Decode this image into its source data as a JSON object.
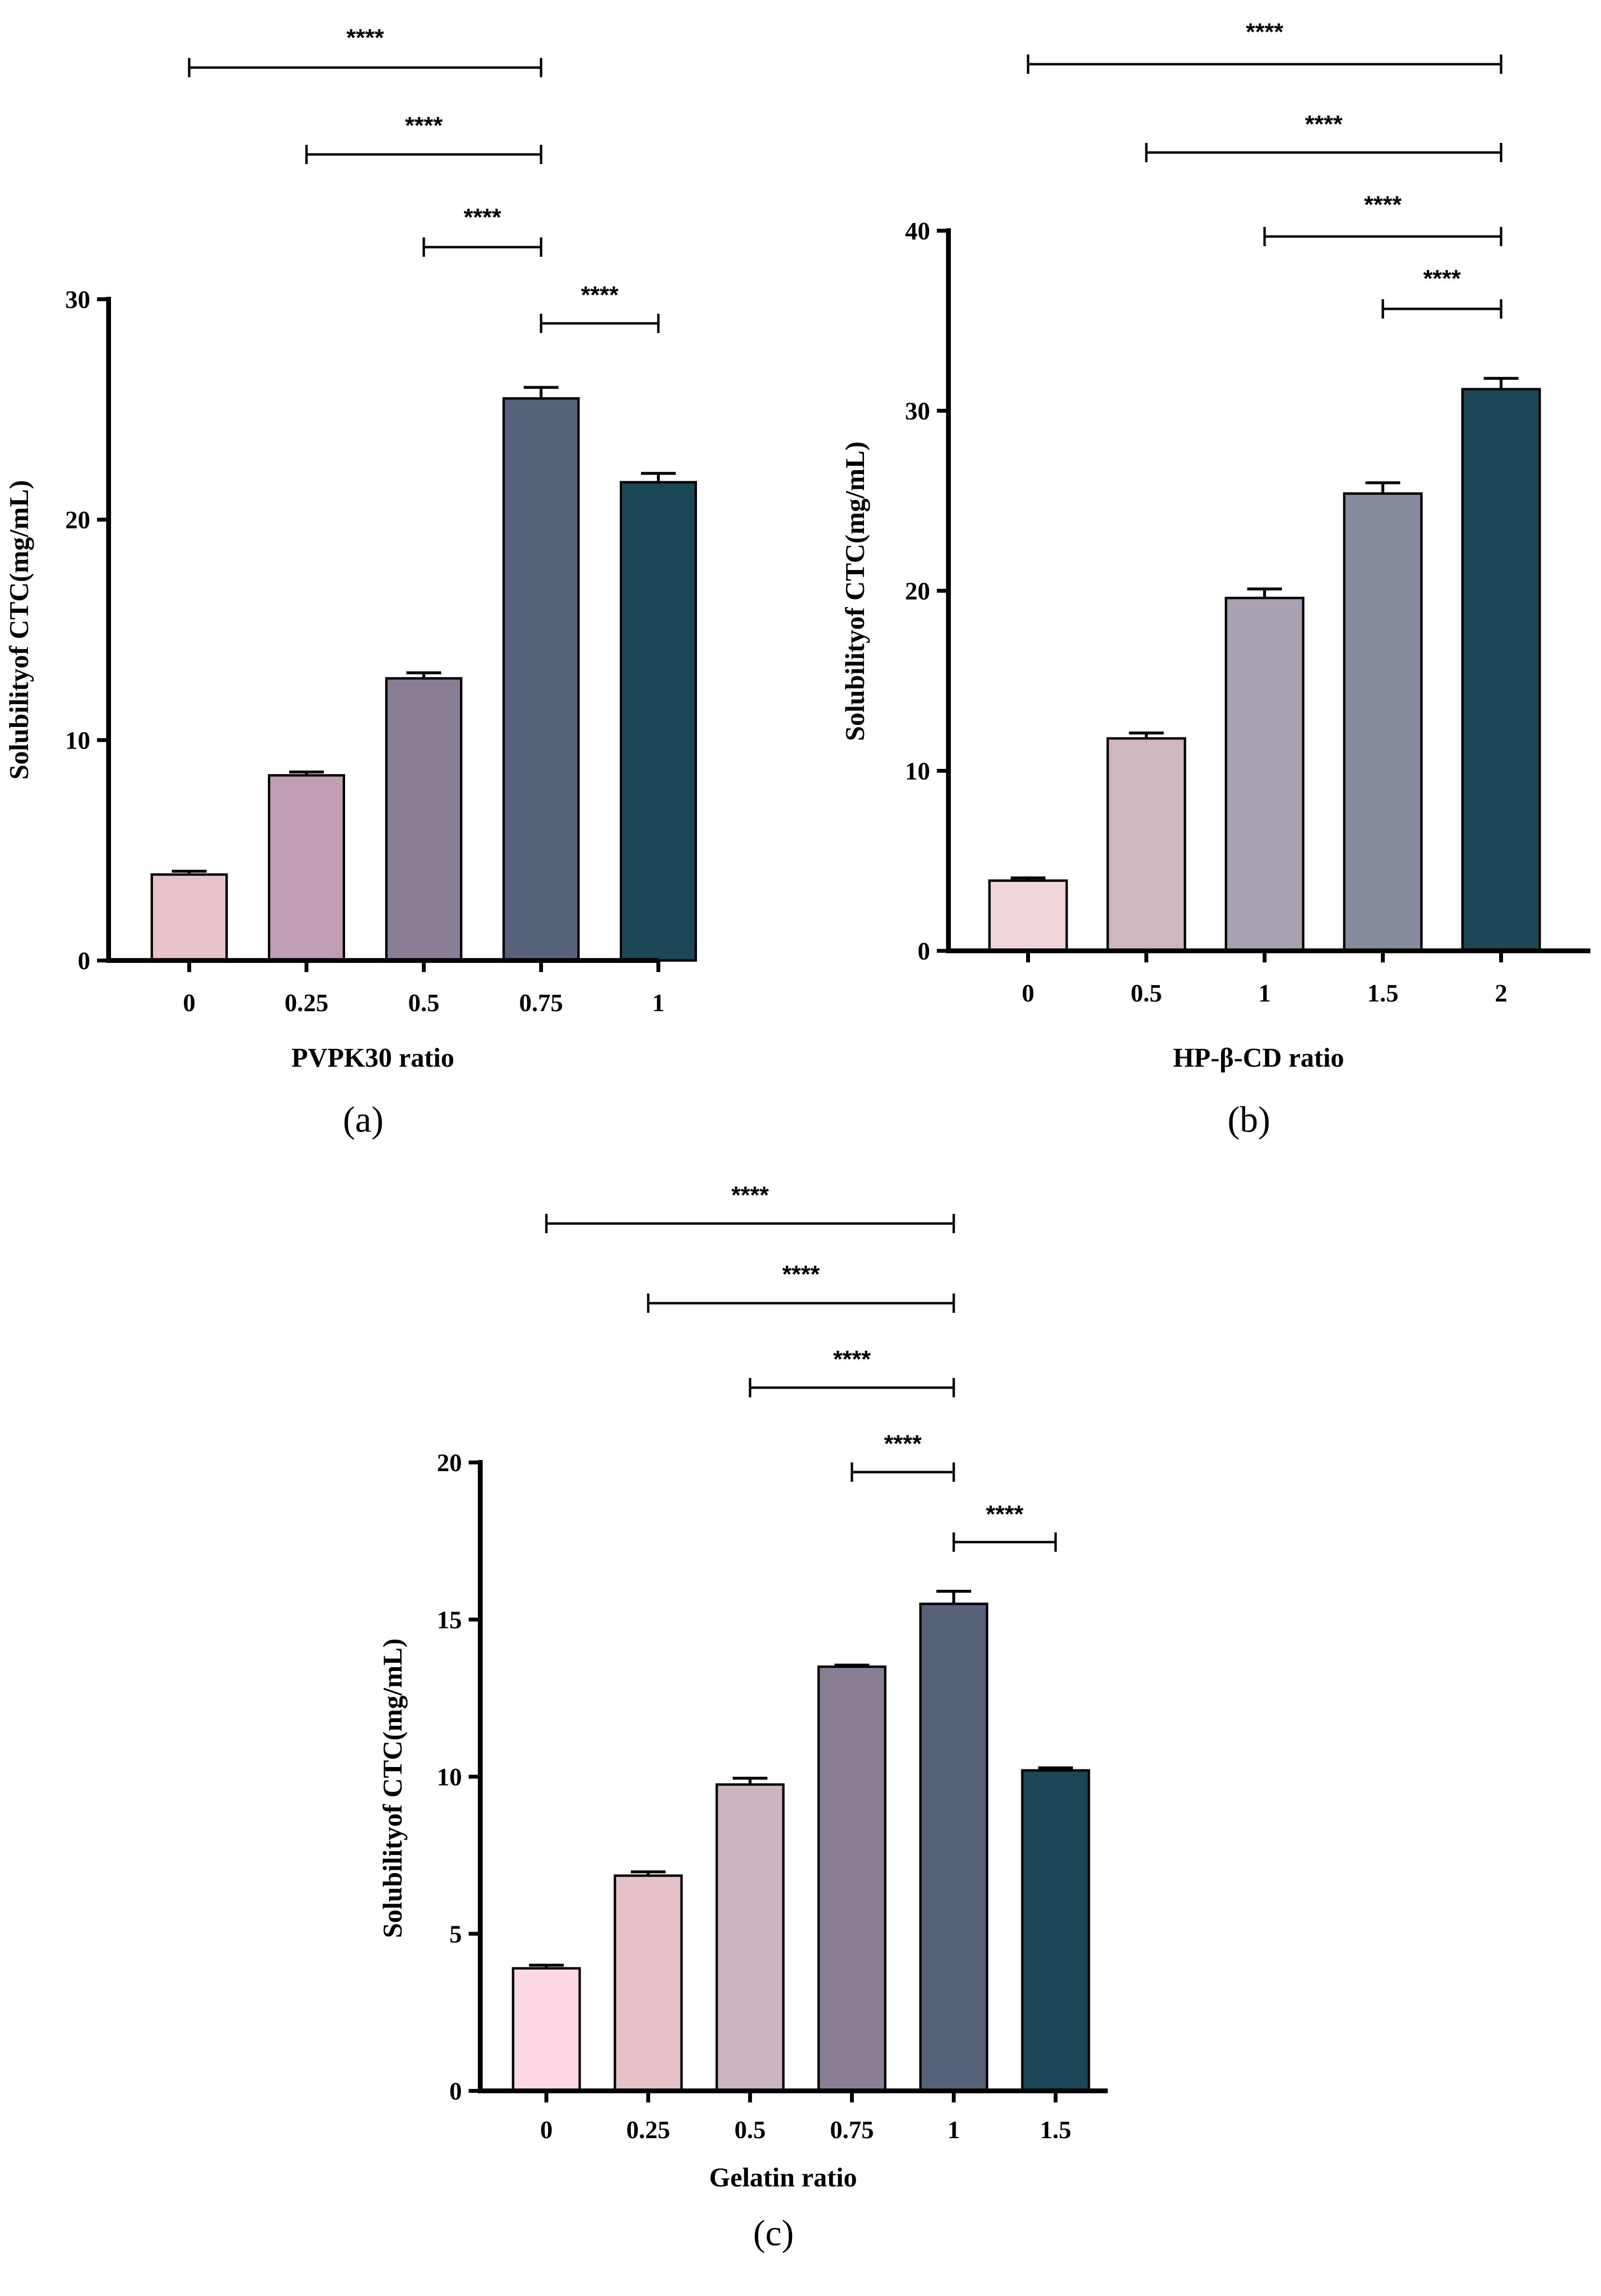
{
  "chart_data": [
    {
      "id": "a",
      "type": "bar",
      "panel_label": "(a)",
      "xlabel": "PVPK30 ratio",
      "ylabel": "Solubilityof CTC(mg/mL)",
      "ylim": [
        0,
        30
      ],
      "yticks": [
        0,
        10,
        20,
        30
      ],
      "categories": [
        "0",
        "0.25",
        "0.5",
        "0.75",
        "1"
      ],
      "values": [
        3.9,
        8.4,
        12.8,
        25.5,
        21.7
      ],
      "errors": [
        0.15,
        0.15,
        0.25,
        0.5,
        0.4
      ],
      "colors": [
        "#e6c3c8",
        "#c09fb2",
        "#897e95",
        "#566279",
        "#1b4655"
      ],
      "significance": [
        {
          "from": 0,
          "to": 3,
          "label": "****"
        },
        {
          "from": 1,
          "to": 3,
          "label": "****"
        },
        {
          "from": 2,
          "to": 3,
          "label": "****"
        },
        {
          "from": 3,
          "to": 4,
          "label": "****"
        }
      ]
    },
    {
      "id": "b",
      "type": "bar",
      "panel_label": "(b)",
      "xlabel": "HP-β-CD ratio",
      "ylabel": "Solubilityof CTC(mg/mL)",
      "ylim": [
        0,
        40
      ],
      "yticks": [
        0,
        10,
        20,
        30,
        40
      ],
      "categories": [
        "0",
        "0.5",
        "1",
        "1.5",
        "2"
      ],
      "values": [
        3.9,
        11.8,
        19.6,
        25.4,
        31.2
      ],
      "errors": [
        0.15,
        0.3,
        0.5,
        0.6,
        0.6
      ],
      "colors": [
        "#f0d4d8",
        "#cfb7c2",
        "#a9a1b1",
        "#858a9c",
        "#1b4655"
      ],
      "significance": [
        {
          "from": 0,
          "to": 4,
          "label": "****"
        },
        {
          "from": 1,
          "to": 4,
          "label": "****"
        },
        {
          "from": 2,
          "to": 4,
          "label": "****"
        },
        {
          "from": 3,
          "to": 4,
          "label": "****"
        }
      ]
    },
    {
      "id": "c",
      "type": "bar",
      "panel_label": "(c)",
      "xlabel": "Gelatin ratio",
      "ylabel": "Solubilityof CTC(mg/mL)",
      "ylim": [
        0,
        20
      ],
      "yticks": [
        0,
        5,
        10,
        15,
        20
      ],
      "categories": [
        "0",
        "0.25",
        "0.5",
        "0.75",
        "1",
        "1.5"
      ],
      "values": [
        3.9,
        6.85,
        9.75,
        13.5,
        15.5,
        10.2
      ],
      "errors": [
        0.1,
        0.12,
        0.2,
        0.05,
        0.4,
        0.08
      ],
      "colors": [
        "#fcd7e6",
        "#e5c1c8",
        "#cdb5c1",
        "#897e95",
        "#566279",
        "#1b4655"
      ],
      "significance": [
        {
          "from": 0,
          "to": 4,
          "label": "****"
        },
        {
          "from": 1,
          "to": 4,
          "label": "****"
        },
        {
          "from": 2,
          "to": 4,
          "label": "****"
        },
        {
          "from": 3,
          "to": 4,
          "label": "****"
        },
        {
          "from": 4,
          "to": 5,
          "label": "****"
        }
      ]
    }
  ]
}
